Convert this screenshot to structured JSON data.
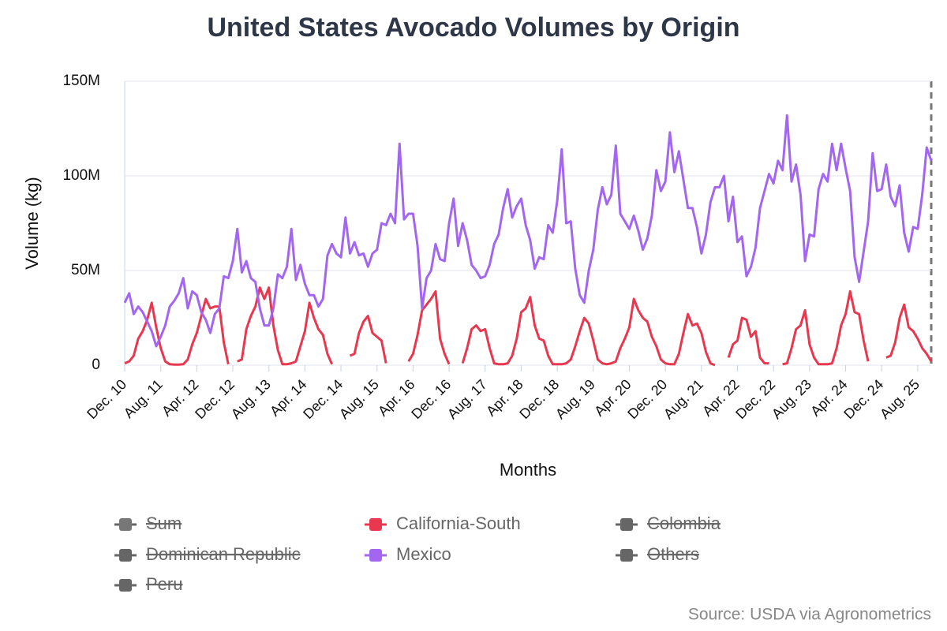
{
  "chart_data": {
    "type": "line",
    "title": "United States Avocado Volumes by Origin",
    "xlabel": "Months",
    "ylabel": "Volume (kg)",
    "source": "Source: USDA via Agronometrics",
    "ylim": [
      0,
      150000000
    ],
    "yticks": [
      0,
      {
        "value": 50000000,
        "label": "50M"
      },
      {
        "value": 100000000,
        "label": "100M"
      },
      {
        "value": 150000000,
        "label": "150M"
      }
    ],
    "grid": true,
    "categories": [
      "Dec. 10",
      null,
      null,
      null,
      null,
      null,
      null,
      null,
      "Aug. 11",
      null,
      null,
      null,
      null,
      null,
      null,
      null,
      "Apr. 12",
      null,
      null,
      null,
      null,
      null,
      null,
      null,
      "Dec. 12",
      null,
      null,
      null,
      null,
      null,
      null,
      null,
      "Aug. 13",
      null,
      null,
      null,
      null,
      null,
      null,
      null,
      "Apr. 14",
      null,
      null,
      null,
      null,
      null,
      null,
      null,
      "Dec. 14",
      null,
      null,
      null,
      null,
      null,
      null,
      null,
      "Aug. 15",
      null,
      null,
      null,
      null,
      null,
      null,
      null,
      "Apr. 16",
      null,
      null,
      null,
      null,
      null,
      null,
      null,
      "Dec. 16",
      null,
      null,
      null,
      null,
      null,
      null,
      null,
      "Aug. 17",
      null,
      null,
      null,
      null,
      null,
      null,
      null,
      "Apr. 18",
      null,
      null,
      null,
      null,
      null,
      null,
      null,
      "Dec. 18",
      null,
      null,
      null,
      null,
      null,
      null,
      null,
      "Aug. 19",
      null,
      null,
      null,
      null,
      null,
      null,
      null,
      "Apr. 20",
      null,
      null,
      null,
      null,
      null,
      null,
      null,
      "Dec. 20",
      null,
      null,
      null,
      null,
      null,
      null,
      null,
      "Aug. 21",
      null,
      null,
      null,
      null,
      null,
      null,
      null,
      "Apr. 22",
      null,
      null,
      null,
      null,
      null,
      null,
      null,
      "Dec. 22",
      null,
      null,
      null,
      null,
      null,
      null,
      null,
      "Aug. 23",
      null,
      null,
      null,
      null,
      null,
      null,
      null,
      "Apr. 24",
      null,
      null,
      null,
      null,
      null,
      null,
      null,
      "Dec. 24",
      null,
      null,
      null,
      null,
      null,
      null,
      null,
      "Aug. 25",
      null,
      null,
      null
    ],
    "series": [
      {
        "name": "Sum",
        "color": "#777777",
        "hidden": true
      },
      {
        "name": "California-South",
        "color": "#e8384f",
        "values": [
          1000000.0,
          2000000.0,
          5000000.0,
          14000000.0,
          18000000.0,
          24000000.0,
          33000000.0,
          20000000.0,
          9000000.0,
          2000000.0,
          500000.0,
          300000.0,
          300000.0,
          500000.0,
          3000000.0,
          11000000.0,
          17000000.0,
          26000000.0,
          35000000.0,
          30000000.0,
          31000000.0,
          31000000.0,
          12000000.0,
          500000.0,
          null,
          2000000.0,
          3000000.0,
          19000000.0,
          26000000.0,
          31000000.0,
          41000000.0,
          35000000.0,
          41000000.0,
          21000000.0,
          8000000.0,
          500000.0,
          500000.0,
          1000000.0,
          2000000.0,
          10000000.0,
          18000000.0,
          33000000.0,
          25000000.0,
          19000000.0,
          16000000.0,
          6000000.0,
          500000.0,
          null,
          null,
          null,
          5000000.0,
          6000000.0,
          17000000.0,
          23000000.0,
          26000000.0,
          17000000.0,
          15000000.0,
          13000000.0,
          1000000.0,
          null,
          null,
          null,
          null,
          2000000.0,
          6000000.0,
          16000000.0,
          29000000.0,
          32000000.0,
          35000000.0,
          39000000.0,
          14000000.0,
          6000000.0,
          500000.0,
          null,
          null,
          1000000.0,
          9000000.0,
          19000000.0,
          21000000.0,
          18000000.0,
          19000000.0,
          9000000.0,
          1000000.0,
          500000.0,
          500000.0,
          1000000.0,
          5000000.0,
          14000000.0,
          28000000.0,
          30000000.0,
          36000000.0,
          21000000.0,
          14000000.0,
          13000000.0,
          5000000.0,
          500000.0,
          500000.0,
          500000.0,
          1000000.0,
          3000000.0,
          10000000.0,
          18000000.0,
          25000000.0,
          22000000.0,
          13000000.0,
          3000000.0,
          1000000.0,
          500000.0,
          1000000.0,
          2000000.0,
          9000000.0,
          14000000.0,
          20000000.0,
          35000000.0,
          29000000.0,
          25000000.0,
          23000000.0,
          15000000.0,
          10000000.0,
          3000000.0,
          1000000.0,
          500000.0,
          500000.0,
          6000000.0,
          17000000.0,
          27000000.0,
          21000000.0,
          22000000.0,
          17000000.0,
          7000000.0,
          1000000.0,
          0,
          null,
          null,
          4000000.0,
          11000000.0,
          13000000.0,
          25000000.0,
          24000000.0,
          15000000.0,
          18000000.0,
          4000000.0,
          1000000.0,
          1000000.0,
          null,
          null,
          500000.0,
          1000000.0,
          9000000.0,
          19000000.0,
          21000000.0,
          29000000.0,
          11000000.0,
          4000000.0,
          500000.0,
          500000.0,
          500000.0,
          1000000.0,
          9000000.0,
          21000000.0,
          27000000.0,
          39000000.0,
          28000000.0,
          27000000.0,
          13000000.0,
          2000000.0,
          null,
          null,
          null,
          4000000.0,
          5000000.0,
          12000000.0,
          25000000.0,
          32000000.0,
          20000000.0,
          18000000.0,
          14000000.0,
          9000000.0,
          6000000.0,
          2000000.0
        ]
      },
      {
        "name": "Colombia",
        "color": "#666666",
        "hidden": true
      },
      {
        "name": "Dominican Republic",
        "color": "#666666",
        "hidden": true
      },
      {
        "name": "Mexico",
        "color": "#a366f0",
        "values": [
          33000000.0,
          38000000.0,
          27000000.0,
          31000000.0,
          28000000.0,
          23000000.0,
          18000000.0,
          10000000.0,
          15000000.0,
          21000000.0,
          31000000.0,
          34000000.0,
          38000000.0,
          46000000.0,
          30000000.0,
          39000000.0,
          37000000.0,
          28000000.0,
          24000000.0,
          17000000.0,
          27000000.0,
          30000000.0,
          47000000.0,
          46000000.0,
          55000000.0,
          72000000.0,
          49000000.0,
          55000000.0,
          46000000.0,
          44000000.0,
          30000000.0,
          21000000.0,
          21000000.0,
          30000000.0,
          48000000.0,
          46000000.0,
          52000000.0,
          72000000.0,
          45000000.0,
          53000000.0,
          43000000.0,
          37000000.0,
          37000000.0,
          31000000.0,
          35000000.0,
          58000000.0,
          64000000.0,
          59000000.0,
          57000000.0,
          78000000.0,
          59000000.0,
          65000000.0,
          58000000.0,
          59000000.0,
          52000000.0,
          59000000.0,
          61000000.0,
          75000000.0,
          74000000.0,
          80000000.0,
          75000000.0,
          117000000.0,
          77000000.0,
          80000000.0,
          80000000.0,
          63000000.0,
          30000000.0,
          46000000.0,
          50000000.0,
          64000000.0,
          56000000.0,
          55000000.0,
          75000000.0,
          88000000.0,
          63000000.0,
          75000000.0,
          66000000.0,
          53000000.0,
          50000000.0,
          46000000.0,
          47000000.0,
          53000000.0,
          64000000.0,
          69000000.0,
          83000000.0,
          93000000.0,
          78000000.0,
          84000000.0,
          88000000.0,
          74000000.0,
          66000000.0,
          51000000.0,
          57000000.0,
          56000000.0,
          74000000.0,
          70000000.0,
          87000000.0,
          114000000.0,
          75000000.0,
          76000000.0,
          51000000.0,
          37000000.0,
          33000000.0,
          50000000.0,
          61000000.0,
          82000000.0,
          94000000.0,
          85000000.0,
          90000000.0,
          116000000.0,
          80000000.0,
          76000000.0,
          72000000.0,
          79000000.0,
          71000000.0,
          61000000.0,
          67000000.0,
          79000000.0,
          103000000.0,
          92000000.0,
          97000000.0,
          123000000.0,
          102000000.0,
          113000000.0,
          98000000.0,
          83000000.0,
          83000000.0,
          73000000.0,
          59000000.0,
          69000000.0,
          86000000.0,
          94000000.0,
          94000000.0,
          100000000.0,
          76000000.0,
          89000000.0,
          65000000.0,
          68000000.0,
          47000000.0,
          52000000.0,
          62000000.0,
          83000000.0,
          92000000.0,
          101000000.0,
          96000000.0,
          108000000.0,
          103000000.0,
          132000000.0,
          97000000.0,
          106000000.0,
          90000000.0,
          55000000.0,
          69000000.0,
          68000000.0,
          93000000.0,
          101000000.0,
          97000000.0,
          117000000.0,
          103000000.0,
          117000000.0,
          104000000.0,
          92000000.0,
          57000000.0,
          44000000.0,
          60000000.0,
          76000000.0,
          112000000.0,
          92000000.0,
          93000000.0,
          106000000.0,
          89000000.0,
          84000000.0,
          95000000.0,
          70000000.0,
          60000000.0,
          73000000.0,
          72000000.0,
          90000000.0,
          115000000.0,
          108000000.0
        ]
      },
      {
        "name": "Others",
        "color": "#666666",
        "hidden": true
      },
      {
        "name": "Peru",
        "color": "#666666",
        "hidden": true
      }
    ]
  }
}
